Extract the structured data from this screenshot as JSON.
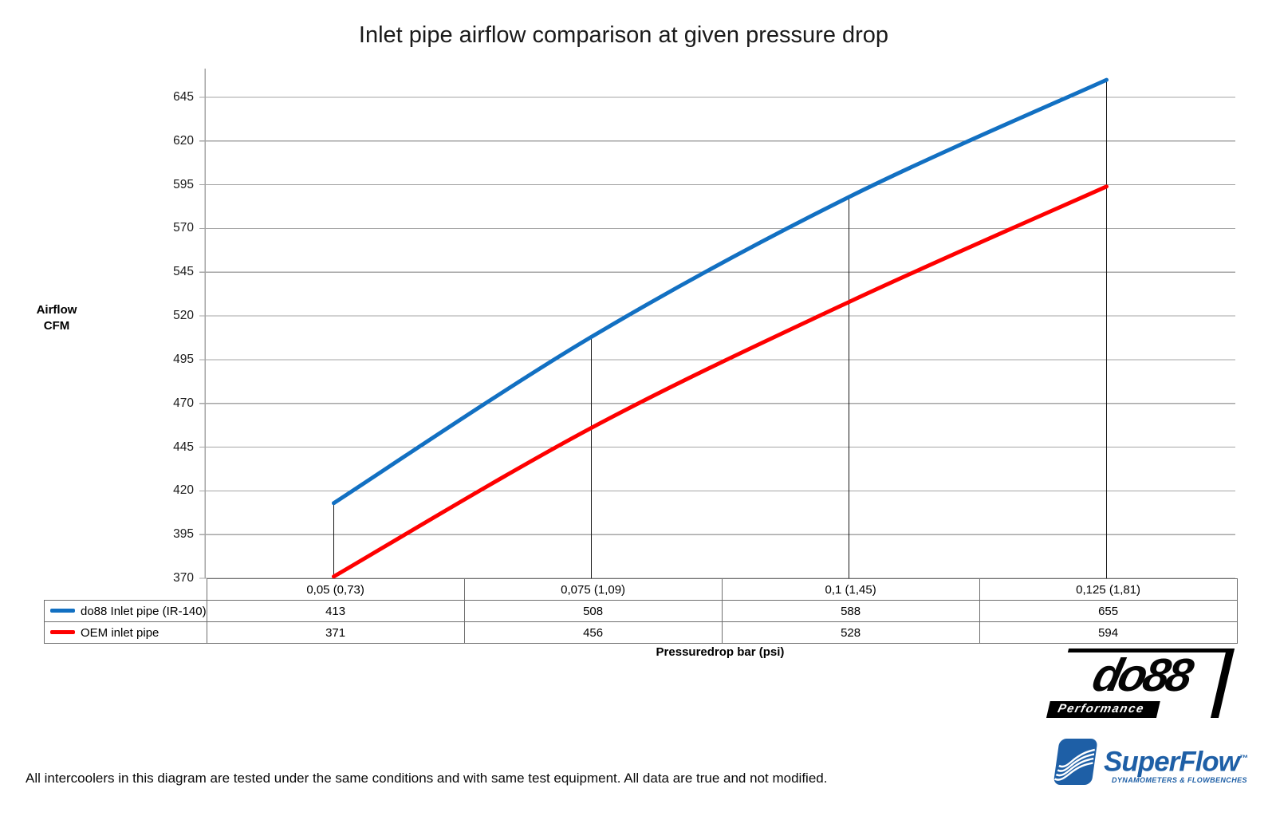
{
  "title": "Inlet pipe airflow comparison at given pressure drop",
  "chart_data": {
    "type": "line",
    "title": "Inlet pipe airflow comparison at given pressure drop",
    "categories": [
      "0,05 (0,73)",
      "0,075 (1,09)",
      "0,1 (1,45)",
      "0,125 (1,81)"
    ],
    "series": [
      {
        "name": "do88 Inlet pipe (IR-140)",
        "values": [
          413,
          508,
          588,
          655
        ],
        "color": "#1270c2"
      },
      {
        "name": "OEM inlet pipe",
        "values": [
          371,
          456,
          528,
          594
        ],
        "color": "#fe0000"
      }
    ],
    "xlabel": "Pressuredrop bar (psi)",
    "ylabel_lines": [
      "Airflow",
      "CFM"
    ],
    "yticks": [
      370,
      395,
      420,
      445,
      470,
      495,
      520,
      545,
      570,
      595,
      620,
      645
    ],
    "ylim": [
      370,
      661
    ],
    "grid": true,
    "smooth": true,
    "category_drop_lines": true,
    "legend_position": "table-left",
    "gridline_color": "#a5a5a5",
    "axis_color": "#a5a5a5",
    "drop_line_color": "#1a1a1a",
    "table_border_color": "#6e6e6e"
  },
  "footer_note": "All intercoolers in this diagram are tested under the same conditions and with same test equipment. All data are true and not modified.",
  "logos": {
    "do88": {
      "text": "do88",
      "sub": "Performance"
    },
    "superflow": {
      "text": "SuperFlow",
      "tm": "™",
      "sub": "DYNAMOMETERS & FLOWBENCHES",
      "color": "#1e5fa6"
    }
  }
}
